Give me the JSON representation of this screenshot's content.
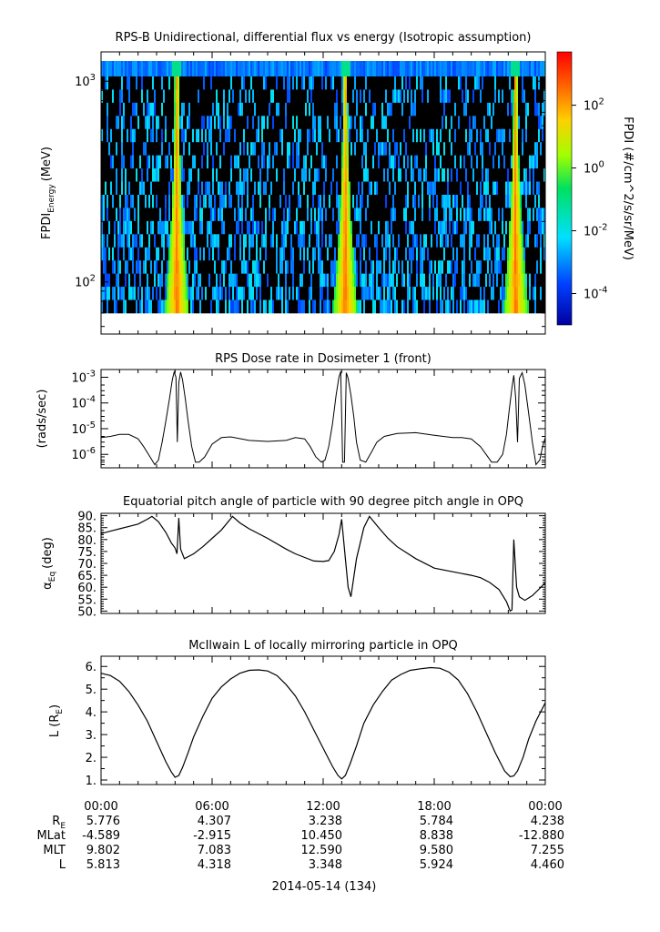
{
  "chart_data": [
    {
      "type": "heatmap",
      "title": "RPS-B  Unidirectional, differential flux vs energy (Isotropic assumption)",
      "ylabel_main": "FPDI",
      "ylabel_sub": "Energy",
      "ylabel_unit": "(MeV)",
      "yscale": "log",
      "ylim": [
        55,
        1400
      ],
      "yticks": [
        {
          "value": 100,
          "base": "10",
          "exp": "2"
        },
        {
          "value": 1000,
          "base": "10",
          "exp": "3"
        }
      ],
      "xlim": [
        0,
        24
      ],
      "energy_channels": 18,
      "peak_hours": [
        4.1,
        13.2,
        22.4
      ],
      "colorbar": {
        "label": "FPDI (#/cm^2/s/sr/MeV)",
        "scale": "log",
        "range": [
          1e-05,
          5000
        ],
        "ticks": [
          {
            "value": 100,
            "base": "10",
            "exp": "2"
          },
          {
            "value": 1,
            "base": "10",
            "exp": "0"
          },
          {
            "value": 0.01,
            "base": "10",
            "exp": "-2"
          },
          {
            "value": 0.0001,
            "base": "10",
            "exp": "-4"
          }
        ]
      }
    },
    {
      "type": "line",
      "title": "RPS  Dose rate in Dosimeter 1 (front)",
      "ylabel": "(rads/sec)",
      "yscale": "log",
      "ylim": [
        3e-07,
        0.002
      ],
      "yticks": [
        {
          "value": 0.001,
          "base": "10",
          "exp": "-3"
        },
        {
          "value": 0.0001,
          "base": "10",
          "exp": "-4"
        },
        {
          "value": 1e-05,
          "base": "10",
          "exp": "-5"
        },
        {
          "value": 1e-06,
          "base": "10",
          "exp": "-6"
        }
      ],
      "xlim": [
        0,
        24
      ],
      "series": [
        {
          "x": [
            0,
            0.5,
            1,
            1.5,
            2,
            2.3,
            2.6,
            2.9,
            3.1,
            3.3,
            3.5,
            3.7,
            3.85,
            3.95,
            4.05,
            4.12,
            4.2,
            4.3,
            4.4,
            4.55,
            4.7,
            4.9,
            5.1,
            5.3,
            5.6,
            6,
            6.5,
            7,
            8,
            9,
            10,
            10.5,
            11,
            11.3,
            11.6,
            11.9,
            12.1,
            12.3,
            12.5,
            12.7,
            12.85,
            12.95,
            13.05,
            13.15,
            13.25,
            13.35,
            13.5,
            13.65,
            13.8,
            14,
            14.3,
            14.6,
            14.9,
            15.3,
            16,
            17,
            18,
            19,
            19.5,
            20,
            20.5,
            20.8,
            21.1,
            21.4,
            21.7,
            21.9,
            22.05,
            22.2,
            22.3,
            22.4,
            22.5,
            22.6,
            22.75,
            22.9,
            23.1,
            23.3,
            23.5,
            23.7,
            23.85,
            24
          ],
          "y": [
            4.5e-06,
            5e-06,
            6e-06,
            6e-06,
            4e-06,
            2e-06,
            9e-07,
            4e-07,
            6e-07,
            3e-06,
            2e-05,
            0.00015,
            0.0008,
            0.0016,
            0.001,
            3e-06,
            0.0006,
            0.0016,
            0.0008,
            0.00015,
            2e-05,
            2e-06,
            5e-07,
            5e-07,
            8e-07,
            2.5e-06,
            4.5e-06,
            4.8e-06,
            3.5e-06,
            3.2e-06,
            3.5e-06,
            4.5e-06,
            4e-06,
            2e-06,
            8e-07,
            5e-07,
            6e-07,
            2e-06,
            1.5e-05,
            0.0002,
            0.001,
            0.0017,
            5e-07,
            5e-07,
            0.0015,
            0.0009,
            0.0002,
            3e-05,
            3e-06,
            6e-07,
            5e-07,
            1.2e-06,
            3e-06,
            5e-06,
            6.5e-06,
            7e-06,
            5.5e-06,
            4.5e-06,
            4.5e-06,
            4e-06,
            2e-06,
            1e-06,
            5e-07,
            5e-07,
            1e-06,
            6e-06,
            5e-05,
            0.0004,
            0.0012,
            0.00015,
            3e-06,
            0.0009,
            0.0015,
            0.0005,
            4e-05,
            3e-06,
            4e-07,
            6e-07,
            2e-06,
            4.5e-06
          ]
        }
      ]
    },
    {
      "type": "line",
      "title": "Equatorial pitch angle of particle with 90 degree pitch angle in OPQ",
      "ylabel_main": "α",
      "ylabel_sub": "Eq",
      "ylabel_unit": "(deg)",
      "ylim": [
        49,
        91
      ],
      "ytick_labels": [
        "90.",
        "85.",
        "80.",
        "75.",
        "70.",
        "65.",
        "60.",
        "55.",
        "50."
      ],
      "ytick_values": [
        90,
        85,
        80,
        75,
        70,
        65,
        60,
        55,
        50
      ],
      "xlim": [
        0,
        24
      ],
      "series": [
        {
          "x": [
            0,
            0.5,
            1,
            1.5,
            2,
            2.5,
            2.75,
            3.1,
            3.5,
            3.8,
            4.0,
            4.1,
            4.2,
            4.3,
            4.5,
            5.0,
            5.5,
            6.0,
            6.5,
            7.1,
            7.5,
            8,
            9,
            10,
            10.5,
            11,
            11.5,
            12,
            12.3,
            12.6,
            12.85,
            13.0,
            13.2,
            13.35,
            13.5,
            13.8,
            14.2,
            14.5,
            15,
            15.5,
            16,
            17,
            18,
            19,
            20,
            20.5,
            21,
            21.5,
            21.9,
            22.1,
            22.2,
            22.3,
            22.45,
            22.6,
            22.9,
            23.3,
            23.7,
            24
          ],
          "y": [
            82.5,
            83.5,
            84.5,
            85.5,
            86.5,
            88.5,
            89.7,
            87.5,
            83,
            78.5,
            76.5,
            74,
            89,
            76,
            72,
            74,
            77,
            80.5,
            84,
            89.7,
            87,
            84.5,
            80.5,
            76,
            74,
            72.5,
            71,
            70.8,
            71.2,
            75,
            82,
            88.5,
            72,
            60,
            56,
            72,
            85,
            89.7,
            85,
            80.5,
            77,
            72,
            68,
            66.5,
            65,
            64,
            62,
            59,
            54,
            50,
            50.5,
            80,
            60,
            56,
            54.5,
            56.5,
            59.5,
            62
          ]
        }
      ]
    },
    {
      "type": "line",
      "title": "McIlwain L of locally mirroring particle in OPQ",
      "ylabel_main": "L (R",
      "ylabel_sub": "E",
      "ylabel_end": ")",
      "ylim": [
        0.8,
        6.45
      ],
      "ytick_labels": [
        "6.",
        "5.",
        "4.",
        "3.",
        "2.",
        "1."
      ],
      "ytick_values": [
        6,
        5,
        4,
        3,
        2,
        1
      ],
      "xlim": [
        0,
        24
      ],
      "series": [
        {
          "x": [
            0,
            0.5,
            1,
            1.5,
            2,
            2.5,
            3,
            3.5,
            3.8,
            4.0,
            4.2,
            4.4,
            4.7,
            5,
            5.5,
            6,
            6.5,
            7,
            7.5,
            8,
            8.5,
            9,
            9.5,
            10,
            10.5,
            11,
            11.5,
            12,
            12.5,
            12.8,
            13.0,
            13.2,
            13.45,
            13.8,
            14.2,
            14.7,
            15.2,
            15.7,
            16.2,
            16.7,
            17.3,
            17.8,
            18.3,
            18.8,
            19.3,
            19.8,
            20.3,
            20.8,
            21.3,
            21.8,
            22.1,
            22.3,
            22.5,
            22.8,
            23.1,
            23.5,
            24
          ],
          "y": [
            5.7,
            5.6,
            5.35,
            4.9,
            4.3,
            3.6,
            2.7,
            1.8,
            1.35,
            1.12,
            1.2,
            1.55,
            2.2,
            2.9,
            3.8,
            4.6,
            5.1,
            5.45,
            5.7,
            5.83,
            5.85,
            5.8,
            5.6,
            5.2,
            4.7,
            4.0,
            3.2,
            2.4,
            1.6,
            1.2,
            1.05,
            1.2,
            1.7,
            2.5,
            3.5,
            4.3,
            4.9,
            5.4,
            5.65,
            5.83,
            5.9,
            5.95,
            5.92,
            5.75,
            5.4,
            4.8,
            4.0,
            3.1,
            2.2,
            1.4,
            1.15,
            1.18,
            1.4,
            2.0,
            2.8,
            3.6,
            4.4
          ]
        }
      ]
    }
  ],
  "time_axis": {
    "tick_labels": [
      "00:00",
      "06:00",
      "12:00",
      "18:00",
      "00:00"
    ],
    "date_label": "2014-05-14 (134)"
  },
  "ephemeris": {
    "rows": [
      {
        "label": "R",
        "label_sub": "E",
        "values": [
          "5.776",
          "4.307",
          "3.238",
          "5.784",
          "4.238"
        ]
      },
      {
        "label": "MLat",
        "label_sub": "",
        "values": [
          "-4.589",
          "-2.915",
          "10.450",
          "8.838",
          "-12.880"
        ]
      },
      {
        "label": "MLT",
        "label_sub": "",
        "values": [
          "9.802",
          "7.083",
          "12.590",
          "9.580",
          "7.255"
        ]
      },
      {
        "label": "L",
        "label_sub": "",
        "values": [
          "5.813",
          "4.318",
          "3.348",
          "5.924",
          "4.460"
        ]
      }
    ]
  }
}
